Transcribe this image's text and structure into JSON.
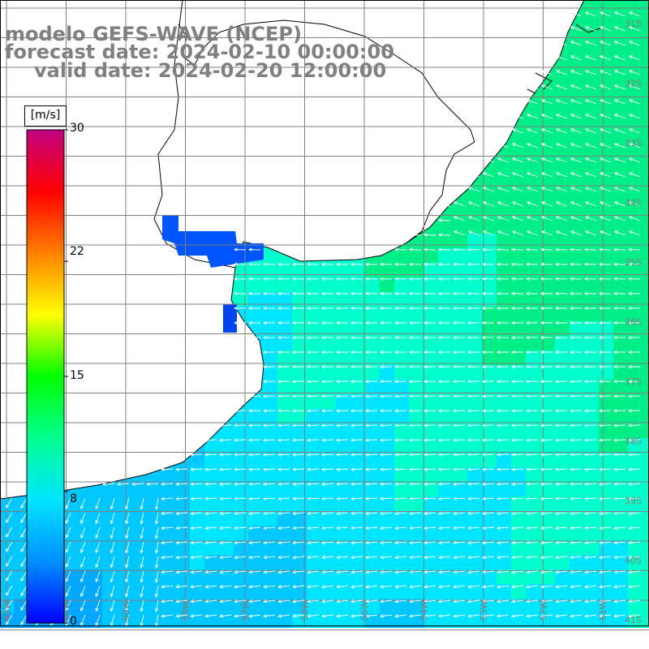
{
  "header": {
    "line1": "modelo GEFS-WAVE (NCEP)",
    "line2": "forecast date: 2024-02-10 00:00:00",
    "line3": "valid date: 2024-02-20 12:00:00"
  },
  "colorbar": {
    "units": "[m/s]",
    "min": 0,
    "max": 30,
    "tick_labels": [
      "30",
      "22",
      "15",
      "8",
      "0"
    ],
    "tick_values": [
      30,
      22,
      15,
      8,
      0
    ],
    "colors": [
      "#0000ff",
      "#0090ff",
      "#00e5ff",
      "#00ff90",
      "#00ff00",
      "#ffff00",
      "#ff8000",
      "#ff0000",
      "#c00080"
    ]
  },
  "map": {
    "lat_labels": [
      "31S",
      "32S",
      "33S",
      "34S",
      "35S",
      "36S",
      "37S",
      "38S",
      "39S",
      "40S",
      "41S"
    ],
    "lon_labels": [
      "61W",
      "60W",
      "59W",
      "58W",
      "57W",
      "56W",
      "55W",
      "54W",
      "53W",
      "52W",
      "51W"
    ],
    "land_color": "#ffffff",
    "grid_color": "#808080",
    "arrow_color": "#ffffff",
    "wind_direction": "from east, turning north-east to south-west near coast"
  }
}
